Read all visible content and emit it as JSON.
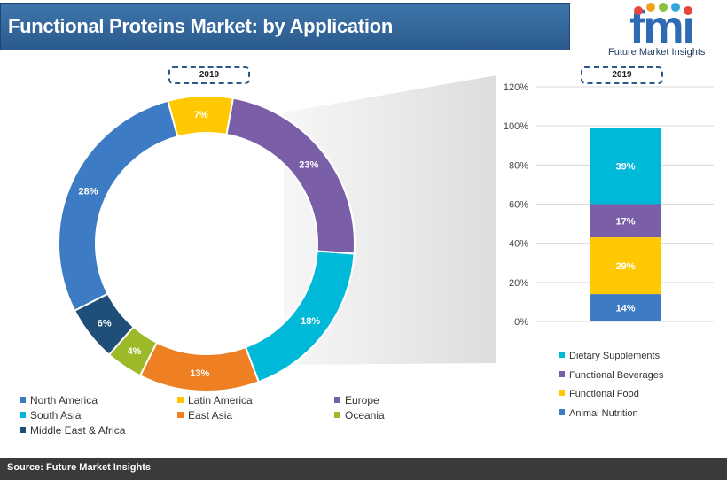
{
  "header": {
    "title": "Functional Proteins Market: by Application"
  },
  "logo": {
    "mark": "fmi",
    "name": "Future Market Insights"
  },
  "footer": {
    "source": "Source: Future Market Insights"
  },
  "chart_data": [
    {
      "type": "pie",
      "variant": "donut",
      "year_label": "2019",
      "categories": [
        "Europe",
        "South Asia",
        "East Asia",
        "Oceania",
        "Middle East & Africa",
        "North America",
        "Latin America"
      ],
      "values": [
        23,
        18,
        13,
        4,
        6,
        28,
        7
      ],
      "labels": [
        "23%",
        "18%",
        "13%",
        "4%",
        "6%",
        "28%",
        "7%"
      ],
      "colors": [
        "#7b5ea8",
        "#00b8d8",
        "#ee7f22",
        "#9cba28",
        "#1f4e79",
        "#3d7cc4",
        "#ffc800"
      ],
      "legend": {
        "position": "bottom",
        "items": [
          {
            "name": "North America",
            "color": "#3d7cc4"
          },
          {
            "name": "Latin America",
            "color": "#ffc800"
          },
          {
            "name": "Europe",
            "color": "#7b5ea8"
          },
          {
            "name": "South Asia",
            "color": "#00b8d8"
          },
          {
            "name": "East Asia",
            "color": "#ee7f22"
          },
          {
            "name": "Oceania",
            "color": "#9cba28"
          },
          {
            "name": "Middle East & Africa",
            "color": "#1f4e79"
          }
        ]
      }
    },
    {
      "type": "bar",
      "variant": "stacked-100",
      "year_label": "2019",
      "categories": [
        "2019"
      ],
      "series": [
        {
          "name": "Animal Nutrition",
          "value": 14,
          "label": "14%",
          "color": "#3d7cc4"
        },
        {
          "name": "Functional Food",
          "value": 29,
          "label": "29%",
          "color": "#ffc800"
        },
        {
          "name": "Functional Beverages",
          "value": 17,
          "label": "17%",
          "color": "#7b5ea8"
        },
        {
          "name": "Dietary Supplements",
          "value": 39,
          "label": "39%",
          "color": "#00b8d8"
        }
      ],
      "y_ticks": [
        "0%",
        "20%",
        "40%",
        "60%",
        "80%",
        "100%",
        "120%"
      ],
      "ylim": [
        0,
        120
      ],
      "grid": true,
      "legend": {
        "position": "bottom",
        "items": [
          {
            "name": "Dietary Supplements",
            "color": "#00b8d8"
          },
          {
            "name": "Functional Beverages",
            "color": "#7b5ea8"
          },
          {
            "name": "Functional Food",
            "color": "#ffc800"
          },
          {
            "name": "Animal Nutrition",
            "color": "#3d7cc4"
          }
        ]
      }
    }
  ]
}
